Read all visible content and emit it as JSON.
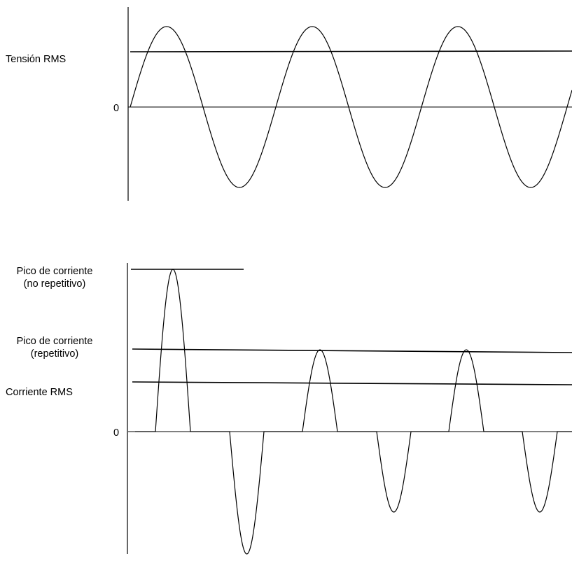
{
  "top_panel": {
    "rms_label": "Tensión RMS",
    "zero_label": "0"
  },
  "bottom_panel": {
    "peak_nonrepetitive_line1": "Pico de corriente",
    "peak_nonrepetitive_line2": "(no repetitivo)",
    "peak_repetitive_line1": "Pico de corriente",
    "peak_repetitive_line2": "(repetitivo)",
    "rms_label": "Corriente RMS",
    "zero_label": "0"
  },
  "colors": {
    "stroke": "#000000",
    "background": "#ffffff"
  }
}
